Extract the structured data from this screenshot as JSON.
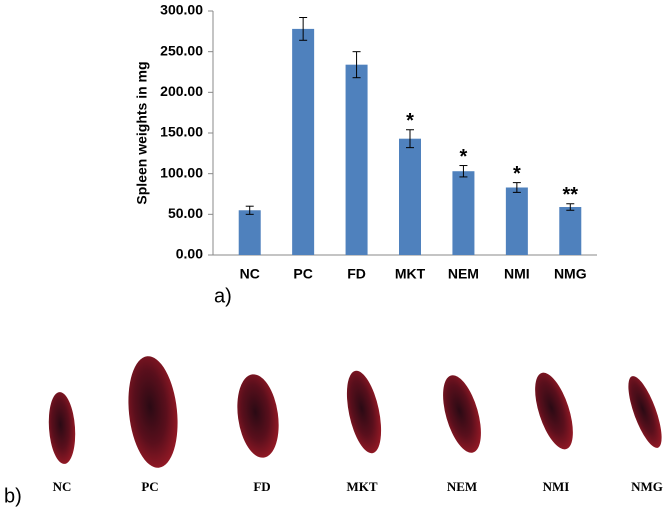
{
  "chart_data": {
    "type": "bar",
    "y_label": "Spleen weights in mg",
    "categories": [
      "NC",
      "PC",
      "FD",
      "MKT",
      "NEM",
      "NMI",
      "NMG"
    ],
    "values": [
      55,
      278,
      234,
      143,
      103,
      83,
      59
    ],
    "errors": [
      5,
      14,
      16,
      11,
      7,
      6,
      4
    ],
    "annotations": [
      null,
      null,
      null,
      "*",
      "*",
      "*",
      "**"
    ],
    "color": "#4f81bd",
    "ylim": [
      0,
      300
    ],
    "yticks": [
      {
        "value": 0,
        "label": "0.00"
      },
      {
        "value": 50,
        "label": "50.00"
      },
      {
        "value": 100,
        "label": "100.00"
      },
      {
        "value": 150,
        "label": "150.00"
      },
      {
        "value": 200,
        "label": "200.00"
      },
      {
        "value": 250,
        "label": "250.00"
      },
      {
        "value": 300,
        "label": "300.00"
      }
    ],
    "panel_label": "a)"
  },
  "figure_b": {
    "panel_label": "b)",
    "specimens": [
      "NC",
      "PC",
      "FD",
      "MKT",
      "NEM",
      "NMI",
      "NMG"
    ]
  }
}
